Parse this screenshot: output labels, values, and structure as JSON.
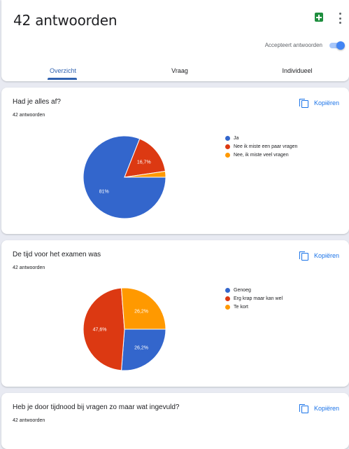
{
  "header": {
    "title": "42 antwoorden",
    "accept_label": "Accepteert antwoorden",
    "accept_toggle_on": true,
    "tabs": [
      "Overzicht",
      "Vraag",
      "Individueel"
    ],
    "active_tab": "Overzicht"
  },
  "questions": [
    {
      "title": "Had je alles af?",
      "count": "42 antwoorden",
      "copy_label": "Kopiëren",
      "chart_data": {
        "type": "pie",
        "labels": [
          "Ja",
          "Nee ik miste een paar vragen",
          "Nee, ik miste veel vragen"
        ],
        "values": [
          81,
          16.7,
          2.3
        ],
        "value_labels": [
          "81%",
          "16,7%",
          ""
        ],
        "colors": [
          "#3366cc",
          "#dc3912",
          "#ff9900"
        ]
      }
    },
    {
      "title": "De tijd voor het examen was",
      "count": "42 antwoorden",
      "copy_label": "Kopiëren",
      "chart_data": {
        "type": "pie",
        "labels": [
          "Genoeg",
          "Erg krap maar kan wel",
          "Te kort"
        ],
        "values": [
          26.2,
          47.6,
          26.2
        ],
        "value_labels": [
          "26,2%",
          "47,6%",
          "26,2%"
        ],
        "colors": [
          "#3366cc",
          "#dc3912",
          "#ff9900"
        ]
      }
    },
    {
      "title": "Heb je door tijdnood bij vragen zo maar wat ingevuld?",
      "count": "42 antwoorden",
      "copy_label": "Kopiëren"
    }
  ]
}
